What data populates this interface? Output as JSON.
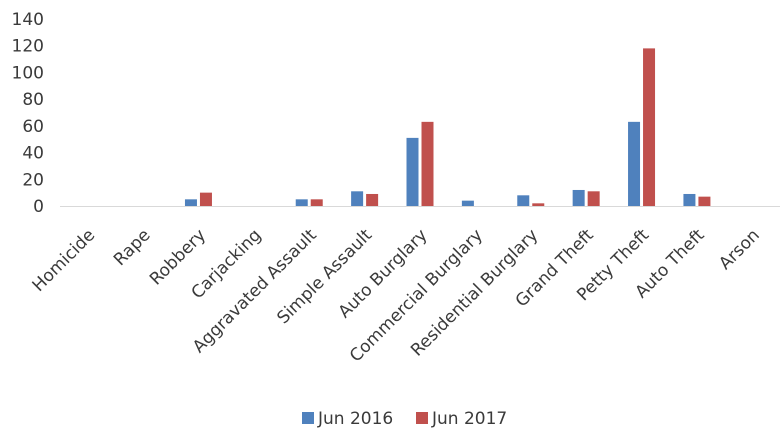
{
  "chart_data": {
    "type": "bar",
    "title": "",
    "xlabel": "",
    "ylabel": "",
    "ylim": [
      0,
      140
    ],
    "yticks": [
      0,
      20,
      40,
      60,
      80,
      100,
      120,
      140
    ],
    "grid": false,
    "legend_position": "bottom",
    "categories": [
      "Homicide",
      "Rape",
      "Robbery",
      "Carjacking",
      "Aggravated Assault",
      "Simple Assault",
      "Auto Burglary",
      "Commercial Burglary",
      "Residential Burglary",
      "Grand Theft",
      "Petty Theft",
      "Auto Theft",
      "Arson"
    ],
    "series": [
      {
        "name": "Jun 2016",
        "color": "#4f81bd",
        "values": [
          0,
          0,
          5,
          0,
          5,
          11,
          51,
          4,
          8,
          12,
          63,
          9,
          0
        ]
      },
      {
        "name": "Jun 2017",
        "color": "#c0504d",
        "values": [
          0,
          0,
          10,
          0,
          5,
          9,
          63,
          0,
          2,
          11,
          118,
          7,
          0
        ]
      }
    ]
  }
}
